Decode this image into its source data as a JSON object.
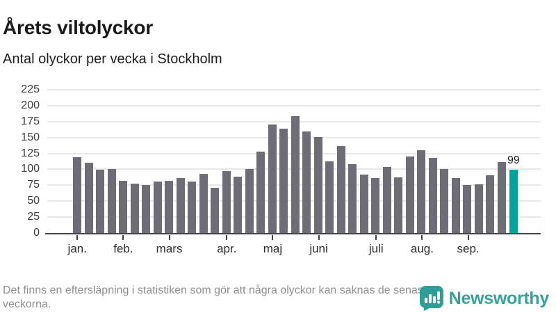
{
  "page": {
    "title": "Årets viltolyckor",
    "subtitle": "Antal olyckor per vecka i Stockholm"
  },
  "chart_data": {
    "type": "bar",
    "title": "Årets viltolyckor",
    "subtitle": "Antal olyckor per vecka i Stockholm",
    "x_unit": "vecka",
    "x_weeks": [
      1,
      2,
      3,
      4,
      5,
      6,
      7,
      8,
      9,
      10,
      11,
      12,
      13,
      14,
      15,
      16,
      17,
      18,
      19,
      20,
      21,
      22,
      23,
      24,
      25,
      26,
      27,
      28,
      29,
      30,
      31,
      32,
      33,
      34,
      35,
      36,
      37,
      38,
      39
    ],
    "values": [
      119,
      110,
      99,
      100,
      82,
      78,
      75,
      81,
      82,
      86,
      81,
      93,
      71,
      97,
      88,
      101,
      128,
      170,
      164,
      183,
      159,
      151,
      112,
      137,
      108,
      92,
      86,
      104,
      87,
      120,
      130,
      118,
      100,
      86,
      75,
      76,
      91,
      111,
      99
    ],
    "highlight_index": 38,
    "highlight_label": "99",
    "month_ticks": [
      {
        "label": "jan.",
        "week": 0
      },
      {
        "label": "feb.",
        "week": 4
      },
      {
        "label": "mars",
        "week": 8
      },
      {
        "label": "apr.",
        "week": 13
      },
      {
        "label": "maj",
        "week": 17
      },
      {
        "label": "juni",
        "week": 21
      },
      {
        "label": "juli",
        "week": 26
      },
      {
        "label": "aug.",
        "week": 30
      },
      {
        "label": "sep.",
        "week": 34
      }
    ],
    "ylim": [
      0,
      225
    ],
    "yticks": [
      0,
      25,
      50,
      75,
      100,
      125,
      150,
      175,
      200,
      225
    ],
    "grid": true,
    "legend": false,
    "colors": {
      "bar": "#6d6d75",
      "highlight": "#00a49c",
      "axis": "#43434a",
      "gridline": "#e7e7e7",
      "brand_teal": "#38a09c"
    }
  },
  "footer": {
    "note": "Det finns en eftersläpning i statistiken som gör att några olyckor kan saknas de senaste veckorna.",
    "brand": "Newsworthy"
  }
}
